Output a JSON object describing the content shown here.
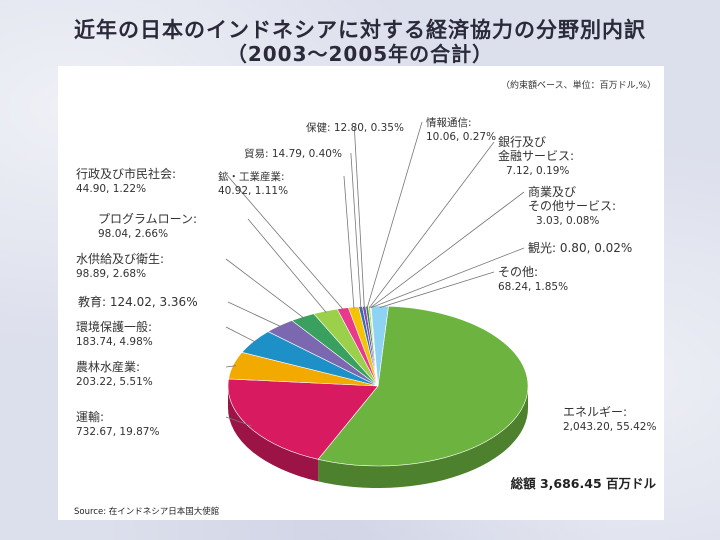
{
  "title_line1": "近年の日本のインドネシアに対する経済協力の分野別内訳",
  "title_line2": "（2003～2005年の合計）",
  "unit_note": "（約束額ベース、単位：百万ドル,%）",
  "total_label": "総額 3,686.45 百万ドル",
  "source": "Source: 在インドネシア日本国大使館",
  "chart_data": {
    "type": "pie",
    "title": "近年の日本のインドネシアに対する経済協力の分野別内訳",
    "subtitle": "（2003～2005年の合計）",
    "unit": "百万ドル, %",
    "total": 3686.45,
    "slices": [
      {
        "name": "エネルギー:",
        "value": 2043.2,
        "percent": 55.42,
        "value_text": "2,043.20, 55.42%",
        "color": "#6db33f"
      },
      {
        "name": "運輸:",
        "value": 732.67,
        "percent": 19.87,
        "value_text": "732.67, 19.87%",
        "color": "#d81b60"
      },
      {
        "name": "農林水産業:",
        "value": 203.22,
        "percent": 5.51,
        "value_text": "203.22, 5.51%",
        "color": "#f2a900"
      },
      {
        "name": "環境保護一般:",
        "value": 183.74,
        "percent": 4.98,
        "value_text": "183.74, 4.98%",
        "color": "#1e90c8"
      },
      {
        "name": "教育:",
        "value": 124.02,
        "percent": 3.36,
        "value_text": "124.02, 3.36%",
        "color": "#7b68b0"
      },
      {
        "name": "水供給及び衛生:",
        "value": 98.89,
        "percent": 2.68,
        "value_text": "98.89, 2.68%",
        "color": "#3aa060"
      },
      {
        "name": "プログラムローン:",
        "value": 98.04,
        "percent": 2.66,
        "value_text": "98.04, 2.66%",
        "color": "#9ad04a"
      },
      {
        "name": "行政及び市民社会:",
        "value": 44.9,
        "percent": 1.22,
        "value_text": "44.90, 1.22%",
        "color": "#e8398a"
      },
      {
        "name": "鉱・工業産業:",
        "value": 40.92,
        "percent": 1.11,
        "value_text": "40.92, 1.11%",
        "color": "#f5c400"
      },
      {
        "name": "貿易:",
        "value": 14.79,
        "percent": 0.4,
        "value_text": "14.79, 0.40%",
        "color": "#2f6fb5"
      },
      {
        "name": "保健:",
        "value": 12.8,
        "percent": 0.35,
        "value_text": "12.80, 0.35%",
        "color": "#8e44ad"
      },
      {
        "name": "情報通信:",
        "value": 10.06,
        "percent": 0.27,
        "value_text": "10.06, 0.27%",
        "color": "#2e8b57"
      },
      {
        "name": "銀行及び金融サービス:",
        "value": 7.12,
        "percent": 0.19,
        "value_text": "7.12, 0.19%",
        "color": "#b0d840"
      },
      {
        "name": "商業及びその他サービス:",
        "value": 3.03,
        "percent": 0.08,
        "value_text": "3.03, 0.08%",
        "color": "#ff7043"
      },
      {
        "name": "観光:",
        "value": 0.8,
        "percent": 0.02,
        "value_text": "0.80, 0.02%",
        "color": "#c0392b"
      },
      {
        "name": "その他:",
        "value": 68.24,
        "percent": 1.85,
        "value_text": "68.24, 1.85%",
        "color": "#8fd3f4"
      }
    ]
  }
}
